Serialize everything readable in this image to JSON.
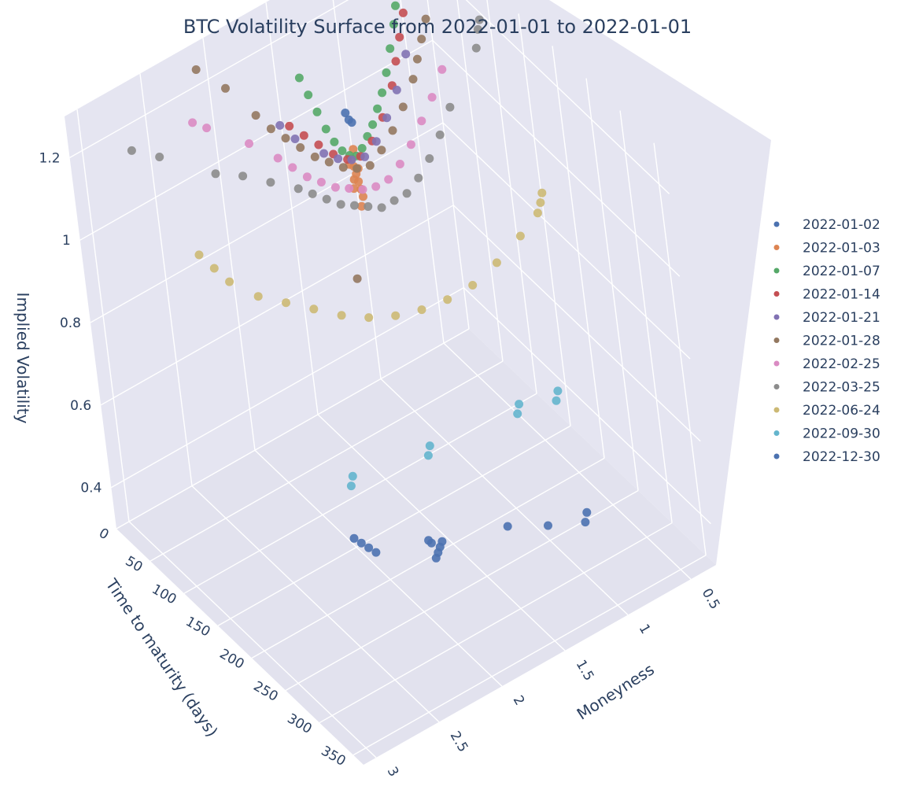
{
  "chart_data": {
    "type": "scatter3d",
    "title": "BTC Volatility Surface from 2022-01-01 to 2022-01-01",
    "axes": {
      "x": {
        "label": "Time to maturity (days)",
        "range": [
          0,
          365
        ],
        "ticks": [
          0,
          50,
          100,
          150,
          200,
          250,
          300,
          350
        ]
      },
      "y": {
        "label": "Moneyness",
        "range": [
          0.3,
          3.1
        ],
        "ticks": [
          0.5,
          1,
          1.5,
          2,
          2.5,
          3
        ],
        "tick_labels": [
          "0.5",
          "1",
          "1.5",
          "2",
          "2.5",
          "3"
        ]
      },
      "z": {
        "label": "Implied Volatility",
        "range": [
          0.3,
          1.3
        ],
        "ticks": [
          0.4,
          0.6,
          0.8,
          1,
          1.2
        ],
        "tick_labels": [
          "0.4",
          "0.6",
          "0.8",
          "1",
          "1.2"
        ]
      }
    },
    "legend_position": "right",
    "series": [
      {
        "name": "2022-01-02",
        "color": "#4c72b0",
        "dte": 1,
        "points": [
          [
            1.02,
            0.95
          ],
          [
            1.0,
            0.93
          ],
          [
            0.98,
            0.92
          ]
        ]
      },
      {
        "name": "2022-01-03",
        "color": "#dd8452",
        "dte": 2,
        "points": [
          [
            0.97,
            0.74
          ],
          [
            0.98,
            0.76
          ],
          [
            0.99,
            0.78
          ],
          [
            1.0,
            0.8
          ],
          [
            1.01,
            0.82
          ],
          [
            1.02,
            0.84
          ],
          [
            1.0,
            0.86
          ],
          [
            1.03,
            0.77
          ],
          [
            0.99,
            0.72
          ],
          [
            1.04,
            0.83
          ],
          [
            1.02,
            0.79
          ],
          [
            0.98,
            0.81
          ]
        ]
      },
      {
        "name": "2022-01-07",
        "color": "#55a868",
        "dte": 6,
        "points": [
          [
            0.55,
            1.17
          ],
          [
            0.57,
            1.14
          ],
          [
            0.6,
            1.1
          ],
          [
            0.65,
            1.05
          ],
          [
            0.7,
            1.0
          ],
          [
            0.75,
            0.96
          ],
          [
            0.8,
            0.93
          ],
          [
            0.85,
            0.9
          ],
          [
            0.9,
            0.88
          ],
          [
            0.95,
            0.86
          ],
          [
            1.0,
            0.85
          ],
          [
            1.05,
            0.86
          ],
          [
            1.1,
            0.88
          ],
          [
            1.15,
            0.91
          ],
          [
            1.2,
            0.95
          ],
          [
            1.25,
            1.0
          ],
          [
            1.3,
            1.05
          ],
          [
            1.35,
            1.1
          ]
        ]
      },
      {
        "name": "2022-01-14",
        "color": "#c44e52",
        "dte": 13,
        "points": [
          [
            0.5,
            1.2
          ],
          [
            0.52,
            1.17
          ],
          [
            0.55,
            1.13
          ],
          [
            0.6,
            1.08
          ],
          [
            0.65,
            1.03
          ],
          [
            0.7,
            0.98
          ],
          [
            0.8,
            0.92
          ],
          [
            0.9,
            0.88
          ],
          [
            1.0,
            0.86
          ],
          [
            1.1,
            0.87
          ],
          [
            1.2,
            0.9
          ],
          [
            1.3,
            0.94
          ],
          [
            1.4,
            0.98
          ],
          [
            1.5,
            1.02
          ]
        ]
      },
      {
        "name": "2022-01-21",
        "color": "#8172b3",
        "dte": 20,
        "points": [
          [
            0.45,
            1.22
          ],
          [
            0.47,
            1.2
          ],
          [
            0.6,
            1.05
          ],
          [
            0.7,
            0.98
          ],
          [
            0.8,
            0.93
          ],
          [
            0.9,
            0.89
          ],
          [
            1.0,
            0.87
          ],
          [
            1.1,
            0.88
          ],
          [
            1.2,
            0.9
          ],
          [
            1.3,
            0.93
          ],
          [
            1.5,
            1.0
          ],
          [
            1.6,
            1.05
          ]
        ]
      },
      {
        "name": "2022-01-28",
        "color": "#937860",
        "dte": 27,
        "points": [
          [
            0.4,
            1.18
          ],
          [
            0.45,
            1.12
          ],
          [
            0.5,
            1.08
          ],
          [
            0.55,
            1.04
          ],
          [
            0.6,
            1.0
          ],
          [
            0.7,
            0.95
          ],
          [
            0.8,
            0.91
          ],
          [
            0.9,
            0.88
          ],
          [
            1.0,
            0.86
          ],
          [
            1.1,
            0.87
          ],
          [
            1.2,
            0.89
          ],
          [
            1.3,
            0.92
          ],
          [
            1.4,
            0.95
          ],
          [
            1.5,
            0.99
          ],
          [
            1.6,
            1.03
          ],
          [
            1.7,
            1.07
          ],
          [
            1.8,
            1.12
          ],
          [
            2.0,
            1.22
          ],
          [
            2.2,
            1.3
          ],
          [
            1.2,
            0.62
          ]
        ]
      },
      {
        "name": "2022-02-25",
        "color": "#da8bc3",
        "dte": 55,
        "points": [
          [
            0.5,
            1.05
          ],
          [
            0.6,
            1.0
          ],
          [
            0.7,
            0.96
          ],
          [
            0.8,
            0.92
          ],
          [
            0.9,
            0.89
          ],
          [
            1.0,
            0.87
          ],
          [
            1.1,
            0.87
          ],
          [
            1.2,
            0.88
          ],
          [
            1.3,
            0.9
          ],
          [
            1.4,
            0.92
          ],
          [
            1.5,
            0.95
          ],
          [
            1.6,
            0.98
          ],
          [
            1.7,
            1.02
          ],
          [
            1.8,
            1.06
          ],
          [
            2.0,
            1.13
          ],
          [
            2.3,
            1.22
          ],
          [
            2.4,
            1.25
          ]
        ]
      },
      {
        "name": "2022-03-25",
        "color": "#8c8c8c",
        "dte": 83,
        "points": [
          [
            0.3,
            1.18
          ],
          [
            0.32,
            1.16
          ],
          [
            0.35,
            1.12
          ],
          [
            0.6,
            1.02
          ],
          [
            0.7,
            0.97
          ],
          [
            0.8,
            0.93
          ],
          [
            0.9,
            0.9
          ],
          [
            1.0,
            0.88
          ],
          [
            1.1,
            0.88
          ],
          [
            1.2,
            0.88
          ],
          [
            1.3,
            0.9
          ],
          [
            1.4,
            0.92
          ],
          [
            1.5,
            0.94
          ],
          [
            1.6,
            0.97
          ],
          [
            1.7,
            1.0
          ],
          [
            1.8,
            1.03
          ],
          [
            2.0,
            1.08
          ],
          [
            2.2,
            1.13
          ],
          [
            2.4,
            1.17
          ],
          [
            2.8,
            1.28
          ],
          [
            3.0,
            1.33
          ]
        ]
      },
      {
        "name": "2022-06-24",
        "color": "#ccb974",
        "dte": 174,
        "points": [
          [
            0.4,
            0.92
          ],
          [
            0.42,
            0.9
          ],
          [
            0.45,
            0.88
          ],
          [
            0.6,
            0.85
          ],
          [
            0.8,
            0.82
          ],
          [
            1.0,
            0.8
          ],
          [
            1.2,
            0.8
          ],
          [
            1.4,
            0.81
          ],
          [
            1.6,
            0.83
          ],
          [
            1.8,
            0.86
          ],
          [
            2.0,
            0.9
          ],
          [
            2.2,
            0.95
          ],
          [
            2.4,
            1.0
          ],
          [
            2.6,
            1.05
          ],
          [
            2.8,
            1.12
          ],
          [
            2.9,
            1.17
          ],
          [
            3.0,
            1.22
          ]
        ]
      },
      {
        "name": "2022-09-30",
        "color": "#64b5cd",
        "dte": 272,
        "points": [
          [
            0.9,
            0.68
          ],
          [
            0.92,
            0.66
          ],
          [
            1.2,
            0.7
          ],
          [
            1.22,
            0.68
          ],
          [
            1.9,
            0.72
          ],
          [
            1.92,
            0.7
          ],
          [
            2.5,
            0.75
          ],
          [
            2.52,
            0.73
          ]
        ]
      },
      {
        "name": "2022-12-30",
        "color": "#4c72b0",
        "dte": 363,
        "points": [
          [
            1.2,
            0.58
          ],
          [
            1.22,
            0.56
          ],
          [
            1.5,
            0.6
          ],
          [
            1.8,
            0.65
          ],
          [
            2.3,
            0.7
          ],
          [
            2.32,
            0.69
          ],
          [
            2.34,
            0.68
          ],
          [
            2.36,
            0.67
          ],
          [
            2.38,
            0.71
          ],
          [
            2.4,
            0.72
          ],
          [
            2.8,
            0.76
          ],
          [
            2.85,
            0.78
          ],
          [
            2.9,
            0.8
          ],
          [
            2.95,
            0.82
          ]
        ]
      }
    ]
  }
}
